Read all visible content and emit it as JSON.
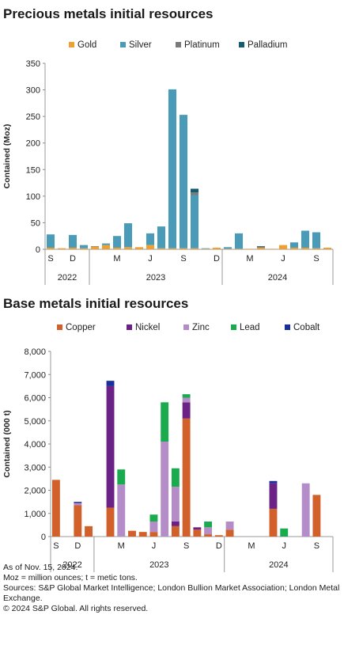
{
  "titles": {
    "precious": "Precious metals initial resources",
    "base": "Base metals initial resources"
  },
  "notes": [
    "As of Nov. 15, 2024.",
    "Moz = million ounces; t = metic tons.",
    "Sources: S&P Global Market Intelligence; London Bullion Market Association; London Metal Exchange.",
    "© 2024 S&P Global. All rights reserved."
  ],
  "chart_data": [
    {
      "type": "bar",
      "stacked": true,
      "title": "Precious metals initial resources",
      "ylabel": "Contained (Moz)",
      "ylim": [
        0,
        350
      ],
      "yticks": [
        0,
        50,
        100,
        150,
        200,
        250,
        300,
        350
      ],
      "legend_position": "top",
      "grid": false,
      "categories": [
        "2022-09",
        "2022-10",
        "2022-11",
        "2022-12",
        "2023-01",
        "2023-02",
        "2023-03",
        "2023-04",
        "2023-05",
        "2023-06",
        "2023-07",
        "2023-08",
        "2023-09",
        "2023-10",
        "2023-11",
        "2023-12",
        "2024-01",
        "2024-02",
        "2024-03",
        "2024-04",
        "2024-05",
        "2024-06",
        "2024-07",
        "2024-08",
        "2024-09",
        "2024-10"
      ],
      "tick_labels": [
        "S",
        "",
        "D",
        "",
        "",
        "",
        "M",
        "",
        "",
        "J",
        "",
        "",
        "S",
        "",
        "",
        "D",
        "",
        "",
        "M",
        "",
        "",
        "J",
        "",
        "",
        "S",
        ""
      ],
      "year_labels": [
        {
          "label": "2022",
          "from": 0,
          "to": 3
        },
        {
          "label": "2023",
          "from": 4,
          "to": 15
        },
        {
          "label": "2024",
          "from": 16,
          "to": 25
        }
      ],
      "series": [
        {
          "name": "Gold",
          "color": "#f0a030",
          "values": [
            3,
            2,
            3,
            2,
            5,
            8,
            3,
            4,
            4,
            8,
            2,
            2,
            2,
            2,
            1,
            3,
            1,
            1,
            1,
            3,
            1,
            8,
            3,
            3,
            2,
            3
          ]
        },
        {
          "name": "Silver",
          "color": "#4a9bb8",
          "values": [
            25,
            0,
            24,
            6,
            0,
            3,
            22,
            45,
            0,
            22,
            41,
            299,
            251,
            100,
            1,
            0,
            3,
            29,
            0,
            0,
            0,
            0,
            10,
            32,
            30,
            0
          ]
        },
        {
          "name": "Platinum",
          "color": "#7a7a7a",
          "values": [
            0,
            0,
            0,
            0,
            1,
            0,
            0,
            0,
            0,
            0,
            0,
            0,
            0,
            5,
            0,
            0,
            0,
            0,
            0,
            2,
            0,
            0,
            0,
            0,
            0,
            0
          ]
        },
        {
          "name": "Palladium",
          "color": "#145a70",
          "values": [
            0,
            0,
            0,
            0,
            0,
            0,
            0,
            0,
            0,
            0,
            0,
            0,
            0,
            7,
            0,
            0,
            0,
            0,
            0,
            1,
            0,
            0,
            0,
            0,
            0,
            0
          ]
        }
      ]
    },
    {
      "type": "bar",
      "stacked": true,
      "title": "Base metals initial resources",
      "ylabel": "Contained (000 t)",
      "ylim": [
        0,
        8000
      ],
      "yticks": [
        "0",
        "1,000",
        "2,000",
        "3,000",
        "4,000",
        "5,000",
        "6,000",
        "7,000",
        "8,000"
      ],
      "legend_position": "top",
      "grid": false,
      "categories": [
        "2022-09",
        "2022-10",
        "2022-11",
        "2022-12",
        "2023-01",
        "2023-02",
        "2023-03",
        "2023-04",
        "2023-05",
        "2023-06",
        "2023-07",
        "2023-08",
        "2023-09",
        "2023-10",
        "2023-11",
        "2023-12",
        "2024-01",
        "2024-02",
        "2024-03",
        "2024-04",
        "2024-05",
        "2024-06",
        "2024-07",
        "2024-08",
        "2024-09",
        "2024-10"
      ],
      "tick_labels": [
        "S",
        "",
        "D",
        "",
        "",
        "",
        "M",
        "",
        "",
        "J",
        "",
        "",
        "S",
        "",
        "",
        "D",
        "",
        "",
        "M",
        "",
        "",
        "J",
        "",
        "",
        "S",
        ""
      ],
      "year_labels": [
        {
          "label": "2022",
          "from": 0,
          "to": 3
        },
        {
          "label": "2023",
          "from": 4,
          "to": 15
        },
        {
          "label": "2024",
          "from": 16,
          "to": 25
        }
      ],
      "series": [
        {
          "name": "Copper",
          "color": "#d2602a",
          "values": [
            2450,
            0,
            1350,
            450,
            0,
            1250,
            0,
            250,
            200,
            200,
            0,
            450,
            5100,
            300,
            100,
            60,
            300,
            0,
            0,
            0,
            1200,
            0,
            0,
            0,
            1800,
            0
          ]
        },
        {
          "name": "Nickel",
          "color": "#6b2185",
          "values": [
            0,
            0,
            0,
            0,
            0,
            5250,
            0,
            0,
            0,
            0,
            0,
            200,
            700,
            100,
            0,
            0,
            0,
            0,
            0,
            0,
            1100,
            0,
            0,
            0,
            0,
            0
          ]
        },
        {
          "name": "Zinc",
          "color": "#b48cc8",
          "values": [
            0,
            0,
            100,
            0,
            0,
            0,
            2250,
            0,
            0,
            450,
            4100,
            1500,
            200,
            0,
            300,
            0,
            350,
            0,
            0,
            0,
            0,
            0,
            0,
            2300,
            0,
            0
          ]
        },
        {
          "name": "Lead",
          "color": "#1aab4f",
          "values": [
            0,
            0,
            0,
            0,
            0,
            0,
            650,
            0,
            0,
            300,
            1700,
            800,
            150,
            0,
            250,
            0,
            0,
            0,
            0,
            0,
            0,
            350,
            0,
            0,
            0,
            0
          ]
        },
        {
          "name": "Cobalt",
          "color": "#1a2f99",
          "values": [
            0,
            0,
            50,
            0,
            0,
            230,
            0,
            0,
            0,
            0,
            0,
            0,
            0,
            0,
            0,
            0,
            0,
            0,
            0,
            0,
            100,
            0,
            0,
            0,
            0,
            0
          ]
        }
      ]
    }
  ]
}
